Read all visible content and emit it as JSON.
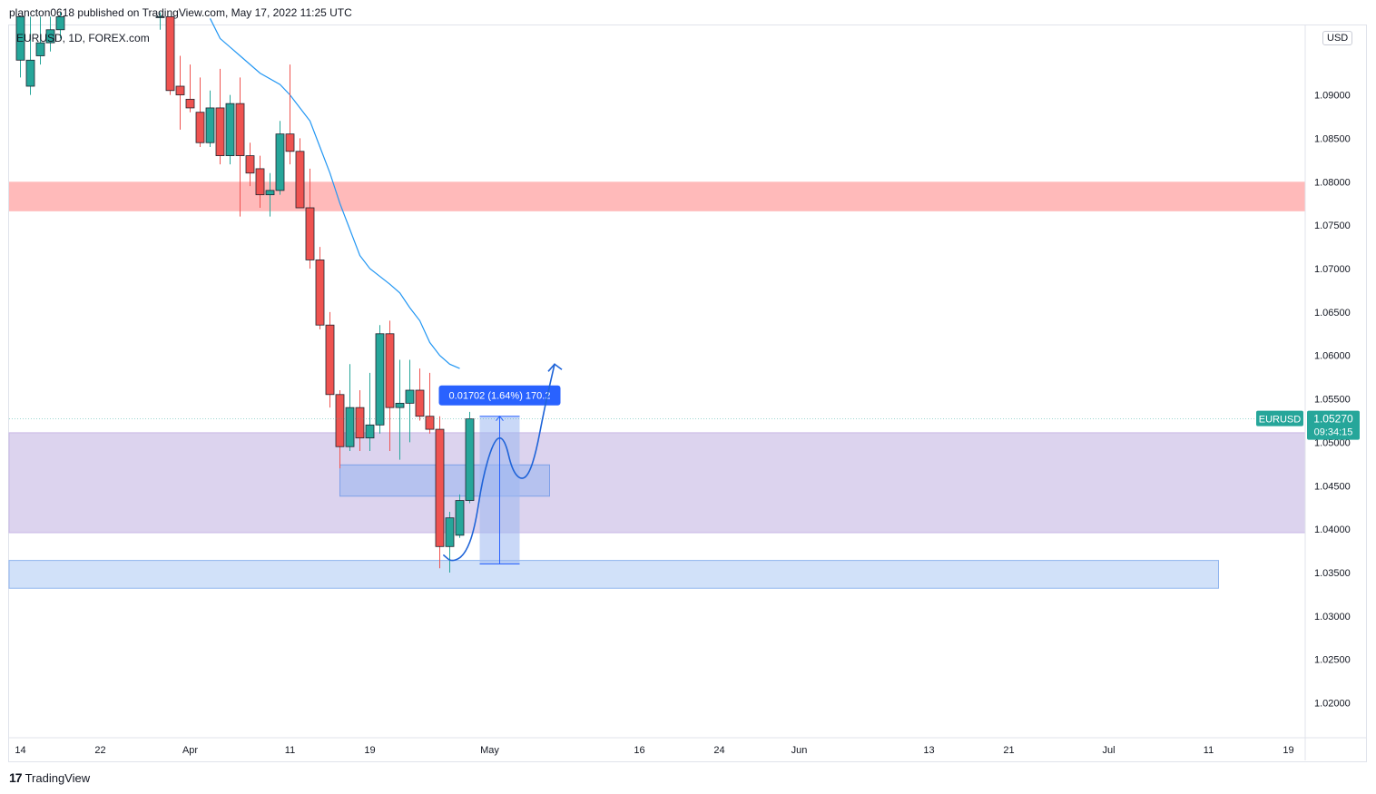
{
  "header": {
    "published_text": "plancton0618 published on TradingView.com, May 17, 2022 11:25 UTC"
  },
  "symbol_label": "EURUSD, 1D, FOREX.com",
  "currency_badge": "USD",
  "footer": {
    "logo": "17",
    "brand": "TradingView"
  },
  "colors": {
    "bull": "#26a69a",
    "bear": "#ef5350",
    "ma_line": "#2196f3",
    "resistance_zone": "#ffb3b3",
    "demand_zone": "#d6cbeb",
    "support_zone": "#c9dcf8",
    "measure_box": "#9db8f0",
    "price_badge": "#26a69a",
    "measure_label_bg": "#2962ff"
  },
  "chart_data": {
    "type": "candlestick",
    "symbol": "EURUSD",
    "interval": "1D",
    "source": "FOREX.com",
    "y_axis": {
      "ylim": [
        1.0163,
        1.098
      ],
      "ticks": [
        "1.09000",
        "1.08500",
        "1.08000",
        "1.07500",
        "1.07000",
        "1.06500",
        "1.06000",
        "1.05500",
        "1.05000",
        "1.04500",
        "1.04000",
        "1.03500",
        "1.03000",
        "1.02500",
        "1.02000"
      ]
    },
    "x_axis": {
      "ticks": [
        {
          "label": "14",
          "day": 0
        },
        {
          "label": "22",
          "day": 8
        },
        {
          "label": "Apr",
          "day": 17
        },
        {
          "label": "11",
          "day": 27
        },
        {
          "label": "19",
          "day": 35
        },
        {
          "label": "May",
          "day": 47
        },
        {
          "label": "16",
          "day": 62
        },
        {
          "label": "24",
          "day": 70
        },
        {
          "label": "Jun",
          "day": 78
        },
        {
          "label": "13",
          "day": 91
        },
        {
          "label": "21",
          "day": 99
        },
        {
          "label": "Jul",
          "day": 109
        },
        {
          "label": "11",
          "day": 119
        },
        {
          "label": "19",
          "day": 127
        }
      ]
    },
    "candles": [
      {
        "day": 0,
        "o": 1.094,
        "h": 1.099,
        "l": 1.092,
        "c": 1.099
      },
      {
        "day": 1,
        "o": 1.091,
        "h": 1.099,
        "l": 1.09,
        "c": 1.094
      },
      {
        "day": 2,
        "o": 1.0945,
        "h": 1.099,
        "l": 1.0935,
        "c": 1.096
      },
      {
        "day": 3,
        "o": 1.096,
        "h": 1.099,
        "l": 1.095,
        "c": 1.0975
      },
      {
        "day": 4,
        "o": 1.0975,
        "h": 1.0995,
        "l": 1.0965,
        "c": 1.099
      },
      {
        "day": 14,
        "o": 1.099,
        "h": 1.0995,
        "l": 1.0975,
        "c": 1.099
      },
      {
        "day": 15,
        "o": 1.099,
        "h": 1.099,
        "l": 1.09,
        "c": 1.0905
      },
      {
        "day": 16,
        "o": 1.091,
        "h": 1.0945,
        "l": 1.086,
        "c": 1.09
      },
      {
        "day": 17,
        "o": 1.0895,
        "h": 1.0935,
        "l": 1.088,
        "c": 1.0885
      },
      {
        "day": 18,
        "o": 1.088,
        "h": 1.092,
        "l": 1.084,
        "c": 1.0845
      },
      {
        "day": 19,
        "o": 1.0845,
        "h": 1.0905,
        "l": 1.084,
        "c": 1.0885
      },
      {
        "day": 20,
        "o": 1.0885,
        "h": 1.093,
        "l": 1.082,
        "c": 1.083
      },
      {
        "day": 21,
        "o": 1.083,
        "h": 1.09,
        "l": 1.082,
        "c": 1.089
      },
      {
        "day": 22,
        "o": 1.089,
        "h": 1.092,
        "l": 1.076,
        "c": 1.083
      },
      {
        "day": 23,
        "o": 1.083,
        "h": 1.0845,
        "l": 1.0795,
        "c": 1.081
      },
      {
        "day": 24,
        "o": 1.0815,
        "h": 1.083,
        "l": 1.077,
        "c": 1.0785
      },
      {
        "day": 25,
        "o": 1.0785,
        "h": 1.081,
        "l": 1.076,
        "c": 1.079
      },
      {
        "day": 26,
        "o": 1.079,
        "h": 1.087,
        "l": 1.0785,
        "c": 1.0855
      },
      {
        "day": 27,
        "o": 1.0855,
        "h": 1.0935,
        "l": 1.082,
        "c": 1.0835
      },
      {
        "day": 28,
        "o": 1.0835,
        "h": 1.085,
        "l": 1.077,
        "c": 1.077
      },
      {
        "day": 29,
        "o": 1.077,
        "h": 1.0815,
        "l": 1.07,
        "c": 1.071
      },
      {
        "day": 30,
        "o": 1.071,
        "h": 1.0725,
        "l": 1.063,
        "c": 1.0635
      },
      {
        "day": 31,
        "o": 1.0635,
        "h": 1.065,
        "l": 1.054,
        "c": 1.0555
      },
      {
        "day": 32,
        "o": 1.0555,
        "h": 1.056,
        "l": 1.047,
        "c": 1.0495
      },
      {
        "day": 33,
        "o": 1.0495,
        "h": 1.059,
        "l": 1.049,
        "c": 1.054
      },
      {
        "day": 34,
        "o": 1.054,
        "h": 1.056,
        "l": 1.049,
        "c": 1.0505
      },
      {
        "day": 35,
        "o": 1.0505,
        "h": 1.058,
        "l": 1.049,
        "c": 1.052
      },
      {
        "day": 36,
        "o": 1.052,
        "h": 1.0635,
        "l": 1.051,
        "c": 1.0625
      },
      {
        "day": 37,
        "o": 1.0625,
        "h": 1.064,
        "l": 1.049,
        "c": 1.054
      },
      {
        "day": 38,
        "o": 1.054,
        "h": 1.0595,
        "l": 1.048,
        "c": 1.0545
      },
      {
        "day": 39,
        "o": 1.0545,
        "h": 1.0595,
        "l": 1.05,
        "c": 1.056
      },
      {
        "day": 40,
        "o": 1.056,
        "h": 1.0585,
        "l": 1.0525,
        "c": 1.053
      },
      {
        "day": 41,
        "o": 1.053,
        "h": 1.058,
        "l": 1.051,
        "c": 1.0515
      },
      {
        "day": 42,
        "o": 1.0515,
        "h": 1.053,
        "l": 1.0355,
        "c": 1.038
      },
      {
        "day": 43,
        "o": 1.038,
        "h": 1.042,
        "l": 1.035,
        "c": 1.0413
      },
      {
        "day": 44,
        "o": 1.0393,
        "h": 1.044,
        "l": 1.039,
        "c": 1.0433
      },
      {
        "day": 45,
        "o": 1.0433,
        "h": 1.0535,
        "l": 1.043,
        "c": 1.0527
      }
    ],
    "moving_average": [
      {
        "day": 19,
        "v": 1.0988
      },
      {
        "day": 20,
        "v": 1.0965
      },
      {
        "day": 22,
        "v": 1.0945
      },
      {
        "day": 24,
        "v": 1.0925
      },
      {
        "day": 26,
        "v": 1.0912
      },
      {
        "day": 27,
        "v": 1.09
      },
      {
        "day": 29,
        "v": 1.087
      },
      {
        "day": 30,
        "v": 1.084
      },
      {
        "day": 31,
        "v": 1.081
      },
      {
        "day": 32,
        "v": 1.0775
      },
      {
        "day": 33,
        "v": 1.0745
      },
      {
        "day": 34,
        "v": 1.0715
      },
      {
        "day": 35,
        "v": 1.07
      },
      {
        "day": 37,
        "v": 1.0682
      },
      {
        "day": 38,
        "v": 1.0672
      },
      {
        "day": 39,
        "v": 1.0655
      },
      {
        "day": 40,
        "v": 1.064
      },
      {
        "day": 41,
        "v": 1.0615
      },
      {
        "day": 42,
        "v": 1.06
      },
      {
        "day": 43,
        "v": 1.059
      },
      {
        "day": 44,
        "v": 1.0585
      }
    ],
    "zones": [
      {
        "name": "resistance",
        "y_top": 1.08,
        "y_bottom": 1.0766,
        "x_from": "left",
        "x_to": "axis"
      },
      {
        "name": "demand",
        "y_top": 1.0511,
        "y_bottom": 1.0396,
        "x_from": "left",
        "x_to": "axis"
      },
      {
        "name": "order-block",
        "y_top": 1.0474,
        "y_bottom": 1.0438,
        "x_from_day": 32,
        "x_to_day": 53
      },
      {
        "name": "support",
        "y_top": 1.0364,
        "y_bottom": 1.0332,
        "x_from": "left",
        "x_to_day": 120
      }
    ],
    "measure": {
      "label": "0.01702 (1.64%) 170.2",
      "y_from": 1.036,
      "y_to": 1.053,
      "x_from_day": 46,
      "x_to_day": 50
    },
    "projection_path": [
      {
        "day": 42.4,
        "v": 1.037
      },
      {
        "day": 43.2,
        "v": 1.0362
      },
      {
        "day": 44.5,
        "v": 1.037
      },
      {
        "day": 45.5,
        "v": 1.04
      },
      {
        "day": 46.3,
        "v": 1.046
      },
      {
        "day": 47.5,
        "v": 1.0505
      },
      {
        "day": 48.5,
        "v": 1.0505
      },
      {
        "day": 49.3,
        "v": 1.0465
      },
      {
        "day": 50.5,
        "v": 1.0455
      },
      {
        "day": 51.5,
        "v": 1.048
      },
      {
        "day": 52.5,
        "v": 1.054
      },
      {
        "day": 53.5,
        "v": 1.059
      }
    ],
    "last_price": {
      "symbol": "EURUSD",
      "value": "1.05270",
      "countdown": "09:34:15"
    }
  }
}
